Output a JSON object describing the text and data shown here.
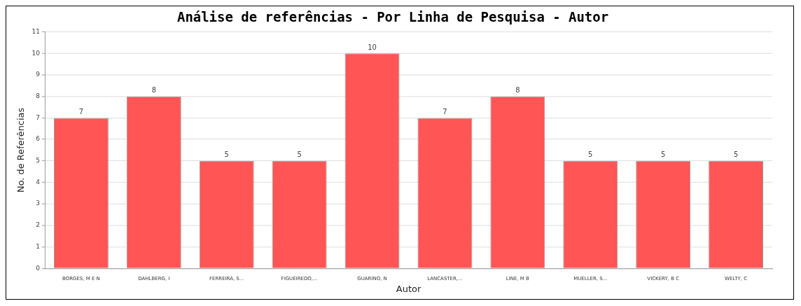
{
  "chart_data": {
    "type": "bar",
    "title": "Análise de referências - Por Linha de Pesquisa - Autor",
    "xlabel": "Autor",
    "ylabel": "No. de Referências",
    "categories": [
      "BORGES, M E N",
      "DAHLBERG, I",
      "FERREIRA, S...",
      "FIGUEIREDO,...",
      "GUARINO, N",
      "LANCASTER,...",
      "LINE, M B",
      "MUELLER, S...",
      "VICKERY, B C",
      "WELTY, C"
    ],
    "values": [
      7,
      8,
      5,
      5,
      10,
      7,
      8,
      5,
      5,
      5
    ],
    "color": "#ff5555",
    "ylim": [
      0,
      11
    ],
    "yticks": [
      0,
      1,
      2,
      3,
      4,
      5,
      6,
      7,
      8,
      9,
      10,
      11
    ],
    "grid": "y",
    "data_labels": true,
    "legend": false
  }
}
